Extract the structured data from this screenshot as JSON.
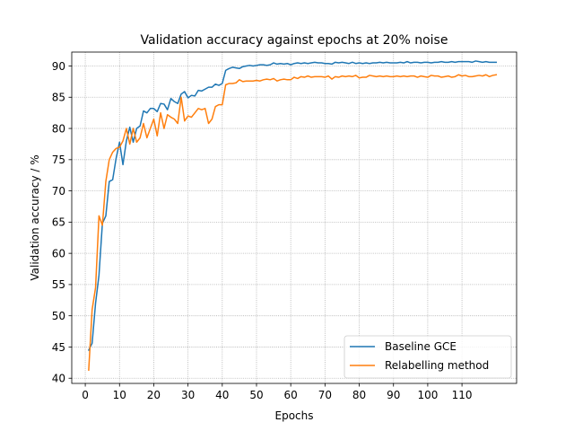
{
  "chart_data": {
    "type": "line",
    "title": "Validation accuracy against epochs at 20% noise",
    "xlabel": "Epochs",
    "ylabel": "Validation accuracy / %",
    "xlim": [
      -3.95,
      125.95
    ],
    "ylim": [
      39.17,
      92.23
    ],
    "xticks": [
      0,
      10,
      20,
      30,
      40,
      50,
      60,
      70,
      80,
      90,
      100,
      110
    ],
    "yticks": [
      40,
      45,
      50,
      55,
      60,
      65,
      70,
      75,
      80,
      85,
      90
    ],
    "grid": true,
    "legend_position": "lower right",
    "series": [
      {
        "name": "Baseline GCE",
        "color": "#1f77b4",
        "x": [
          1,
          2,
          3,
          4,
          5,
          6,
          7,
          8,
          9,
          10,
          11,
          12,
          13,
          14,
          15,
          16,
          17,
          18,
          19,
          20,
          21,
          22,
          23,
          24,
          25,
          26,
          27,
          28,
          29,
          30,
          31,
          32,
          33,
          34,
          35,
          36,
          37,
          38,
          39,
          40,
          41,
          42,
          43,
          44,
          45,
          46,
          47,
          48,
          49,
          50,
          51,
          52,
          53,
          54,
          55,
          56,
          57,
          58,
          59,
          60,
          61,
          62,
          63,
          64,
          65,
          66,
          67,
          68,
          69,
          70,
          71,
          72,
          73,
          74,
          75,
          76,
          77,
          78,
          79,
          80,
          81,
          82,
          83,
          84,
          85,
          86,
          87,
          88,
          89,
          90,
          91,
          92,
          93,
          94,
          95,
          96,
          97,
          98,
          99,
          100,
          101,
          102,
          103,
          104,
          105,
          106,
          107,
          108,
          109,
          110,
          111,
          112,
          113,
          114,
          115,
          116,
          117,
          118,
          119,
          120
        ],
        "values": [
          44.5,
          45.6,
          52.0,
          56.5,
          64.8,
          66.0,
          71.5,
          71.8,
          75.2,
          77.8,
          74.2,
          78.0,
          80.2,
          77.8,
          80.0,
          80.4,
          82.8,
          82.5,
          83.2,
          83.2,
          82.7,
          84.0,
          83.9,
          83.0,
          84.8,
          84.3,
          84.0,
          85.5,
          85.9,
          84.9,
          85.3,
          85.2,
          86.1,
          86.0,
          86.3,
          86.6,
          86.6,
          87.1,
          86.9,
          87.2,
          89.3,
          89.6,
          89.8,
          89.7,
          89.6,
          89.9,
          90.0,
          90.1,
          90.0,
          90.1,
          90.2,
          90.2,
          90.1,
          90.2,
          90.5,
          90.3,
          90.4,
          90.3,
          90.4,
          90.2,
          90.4,
          90.5,
          90.4,
          90.5,
          90.4,
          90.5,
          90.6,
          90.5,
          90.5,
          90.4,
          90.4,
          90.3,
          90.6,
          90.5,
          90.6,
          90.5,
          90.4,
          90.6,
          90.4,
          90.5,
          90.4,
          90.5,
          90.4,
          90.5,
          90.5,
          90.6,
          90.5,
          90.6,
          90.5,
          90.5,
          90.5,
          90.6,
          90.5,
          90.7,
          90.5,
          90.6,
          90.6,
          90.5,
          90.6,
          90.6,
          90.5,
          90.6,
          90.6,
          90.7,
          90.6,
          90.6,
          90.7,
          90.6,
          90.7,
          90.7,
          90.7,
          90.7,
          90.6,
          90.8,
          90.7,
          90.6,
          90.7,
          90.6,
          90.6,
          90.6
        ]
      },
      {
        "name": "Relabelling method",
        "color": "#ff7f0e",
        "x": [
          1,
          2,
          3,
          4,
          5,
          6,
          7,
          8,
          9,
          10,
          11,
          12,
          13,
          14,
          15,
          16,
          17,
          18,
          19,
          20,
          21,
          22,
          23,
          24,
          25,
          26,
          27,
          28,
          29,
          30,
          31,
          32,
          33,
          34,
          35,
          36,
          37,
          38,
          39,
          40,
          41,
          42,
          43,
          44,
          45,
          46,
          47,
          48,
          49,
          50,
          51,
          52,
          53,
          54,
          55,
          56,
          57,
          58,
          59,
          60,
          61,
          62,
          63,
          64,
          65,
          66,
          67,
          68,
          69,
          70,
          71,
          72,
          73,
          74,
          75,
          76,
          77,
          78,
          79,
          80,
          81,
          82,
          83,
          84,
          85,
          86,
          87,
          88,
          89,
          90,
          91,
          92,
          93,
          94,
          95,
          96,
          97,
          98,
          99,
          100,
          101,
          102,
          103,
          104,
          105,
          106,
          107,
          108,
          109,
          110,
          111,
          112,
          113,
          114,
          115,
          116,
          117,
          118,
          119,
          120
        ],
        "values": [
          41.3,
          51.0,
          54.5,
          66.0,
          64.5,
          71.5,
          75.0,
          76.2,
          76.8,
          77.0,
          78.0,
          80.0,
          77.5,
          80.0,
          77.8,
          78.5,
          80.8,
          78.5,
          80.0,
          81.5,
          78.8,
          82.5,
          80.0,
          82.2,
          81.8,
          81.5,
          80.8,
          85.0,
          81.2,
          82.0,
          81.8,
          82.5,
          83.2,
          83.0,
          83.2,
          80.8,
          81.5,
          83.5,
          83.8,
          83.8,
          87.0,
          87.2,
          87.2,
          87.3,
          87.8,
          87.5,
          87.6,
          87.6,
          87.6,
          87.7,
          87.6,
          87.8,
          87.9,
          87.8,
          88.0,
          87.6,
          87.8,
          87.9,
          87.8,
          87.8,
          88.2,
          88.0,
          88.3,
          88.2,
          88.4,
          88.2,
          88.3,
          88.3,
          88.3,
          88.2,
          88.4,
          87.9,
          88.3,
          88.2,
          88.4,
          88.3,
          88.4,
          88.3,
          88.5,
          88.1,
          88.2,
          88.2,
          88.5,
          88.4,
          88.3,
          88.4,
          88.3,
          88.4,
          88.3,
          88.3,
          88.4,
          88.3,
          88.4,
          88.3,
          88.4,
          88.4,
          88.2,
          88.4,
          88.3,
          88.2,
          88.5,
          88.4,
          88.4,
          88.2,
          88.3,
          88.4,
          88.2,
          88.3,
          88.6,
          88.4,
          88.5,
          88.3,
          88.3,
          88.4,
          88.5,
          88.4,
          88.6,
          88.3,
          88.5,
          88.6
        ]
      }
    ]
  }
}
